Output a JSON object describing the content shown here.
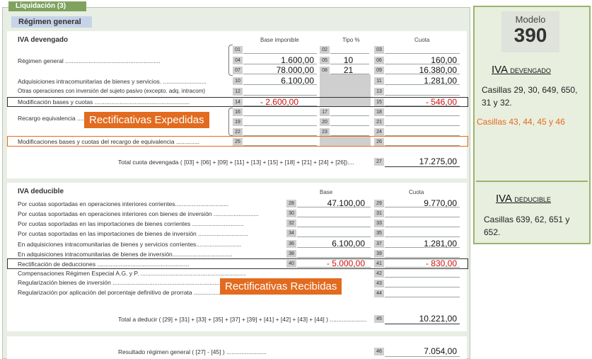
{
  "tab_label": "Liquidación (3)",
  "regimen_title": "Régimen general",
  "devengado": {
    "title": "IVA devengado",
    "col_base": "Base imponible",
    "col_tipo": "Tipo %",
    "col_cuota": "Cuota",
    "regimen_label": "Régimen general .........................................................",
    "adq_label": "Adquisiciones intracomunitarias de bienes y servicios. ..........................",
    "otras_label": "Otras operaciones con inversión del sujeto pasivo (excepto. adq. intracom)",
    "modif_label": "Modificación bases y cuotas .........................................................",
    "recargo_label": "Recargo equivalencia .................",
    "modif_recargo_label": "Modificaciones bases y cuotas del recargo de equivalencia ..............",
    "total_label": "Total cuota devengada ( [03] + [06] + [09] + [11] + [13] + [15] + [18] + [21] + [24] + [26])....",
    "rows": {
      "b04": "1.600,00",
      "t05": "10",
      "c06": "160,00",
      "b07": "78.000,00",
      "t08": "21",
      "c09": "16.380,00",
      "b10": "6.100,00",
      "c11": "1.281,00",
      "b14": "- 2.600,00",
      "c15": "- 546,00",
      "total27": "17.275,00"
    },
    "codes": [
      "01",
      "02",
      "03",
      "04",
      "05",
      "06",
      "07",
      "08",
      "09",
      "10",
      "11",
      "12",
      "13",
      "14",
      "15",
      "16",
      "17",
      "18",
      "19",
      "20",
      "21",
      "22",
      "23",
      "24",
      "25",
      "26",
      "27"
    ]
  },
  "deducible": {
    "title": "IVA deducible",
    "col_base": "Base",
    "col_cuota": "Cuota",
    "labels": [
      "Por cuotas soportadas en operaciones interiores corrientes................................",
      "Por cuotas soportadas en operaciones interiores con bienes de inversión ...........................",
      "Por cuotas soportadas en las importaciones de bienes corrientes ...............................",
      "Por cuotas soportadas en las importaciones de bienes de inversión ..............................",
      "En adquisiciones intracomunitarias de bienes y servicios corrientes...........................",
      "En adquisiciones intracomunitarias de bienes de inversión....................................",
      "Rectificación de deducciones .......................................................",
      "Compensaciones Régimen Especial A.G. y P. ...............................................................",
      "Regularización bienes de inversión ..........................................................................",
      "Regularización por aplicación del porcentaje definitivo de prorrata .................................."
    ],
    "total_label": "Total a deducir ( [29] + [31] + [33] + [35] + [37] + [39] + [41] + [42] + [43] + [44] ) ......................",
    "values": {
      "b28": "47.100,00",
      "c29": "9.770,00",
      "b36": "6.100,00",
      "c37": "1.281,00",
      "b40": "- 5.000,00",
      "c41": "- 830,00",
      "total45": "10.221,00"
    },
    "codes": [
      "28",
      "29",
      "30",
      "31",
      "32",
      "33",
      "34",
      "35",
      "36",
      "37",
      "38",
      "39",
      "40",
      "41",
      "42",
      "43",
      "44",
      "45"
    ]
  },
  "resultado": {
    "label": "Resultado régimen general ( [27] - [45] ) ........................",
    "code": "46",
    "value": "7.054,00"
  },
  "annotations": {
    "expedidas": "Rectificativas Expedidas",
    "recibidas": "Rectificativas Recibidas"
  },
  "sidebar": {
    "modelo_label": "Modelo",
    "modelo_number": "390",
    "devengado_title_first": "IVA ",
    "devengado_title_rest": "devengado",
    "devengado_casillas": "Casillas 29, 30, 649, 650, 31 y 32.",
    "devengado_orange": "Casillas 43, 44, 45 y 46",
    "deducible_title_first": "IVA ",
    "deducible_title_rest": "deducible",
    "deducible_casillas": "Casillas 639, 62, 651 y 652."
  },
  "colors": {
    "accent_orange": "#e26b1f",
    "negative_red": "#cc1111",
    "form_green": "#7fa35f"
  }
}
